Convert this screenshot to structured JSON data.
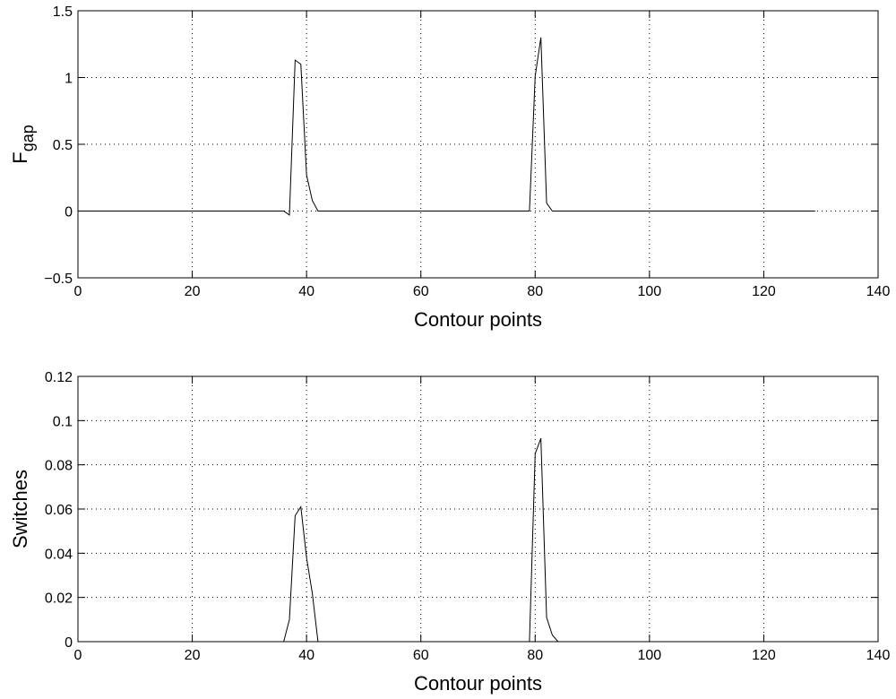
{
  "chart_data": [
    {
      "type": "line",
      "xlabel": "Contour points",
      "ylabel": "F",
      "ylabel_subscript": "gap",
      "xlim": [
        0,
        140
      ],
      "ylim": [
        -0.5,
        1.5
      ],
      "xticks": [
        0,
        20,
        40,
        60,
        80,
        100,
        120,
        140
      ],
      "yticks": [
        -0.5,
        0,
        0.5,
        1,
        1.5
      ],
      "xtick_labels": [
        "0",
        "20",
        "40",
        "60",
        "80",
        "100",
        "120",
        "140"
      ],
      "ytick_labels": [
        "−0.5",
        "0",
        "0.5",
        "1",
        "1.5"
      ],
      "grid": true,
      "series": [
        {
          "x": [
            1,
            36,
            37,
            38,
            39,
            40,
            41,
            42,
            79,
            80,
            81,
            82,
            83,
            84,
            129
          ],
          "y": [
            0,
            0,
            -0.03,
            1.13,
            1.1,
            0.27,
            0.08,
            0,
            0,
            1.01,
            1.3,
            0.06,
            0,
            0,
            0
          ]
        }
      ]
    },
    {
      "type": "line",
      "xlabel": "Contour points",
      "ylabel": "Switches",
      "xlim": [
        0,
        140
      ],
      "ylim": [
        0,
        0.12
      ],
      "xticks": [
        0,
        20,
        40,
        60,
        80,
        100,
        120,
        140
      ],
      "yticks": [
        0,
        0.02,
        0.04,
        0.06,
        0.08,
        0.1,
        0.12
      ],
      "xtick_labels": [
        "0",
        "20",
        "40",
        "60",
        "80",
        "100",
        "120",
        "140"
      ],
      "ytick_labels": [
        "0",
        "0.02",
        "0.04",
        "0.06",
        "0.08",
        "0.1",
        "0.12"
      ],
      "grid": true,
      "series": [
        {
          "x": [
            1,
            36,
            37,
            38,
            39,
            40,
            41,
            42,
            79,
            80,
            81,
            82,
            83,
            84,
            129
          ],
          "y": [
            0,
            0,
            0.01,
            0.057,
            0.061,
            0.038,
            0.022,
            0,
            0,
            0.085,
            0.092,
            0.011,
            0.003,
            0,
            0
          ]
        }
      ]
    }
  ]
}
